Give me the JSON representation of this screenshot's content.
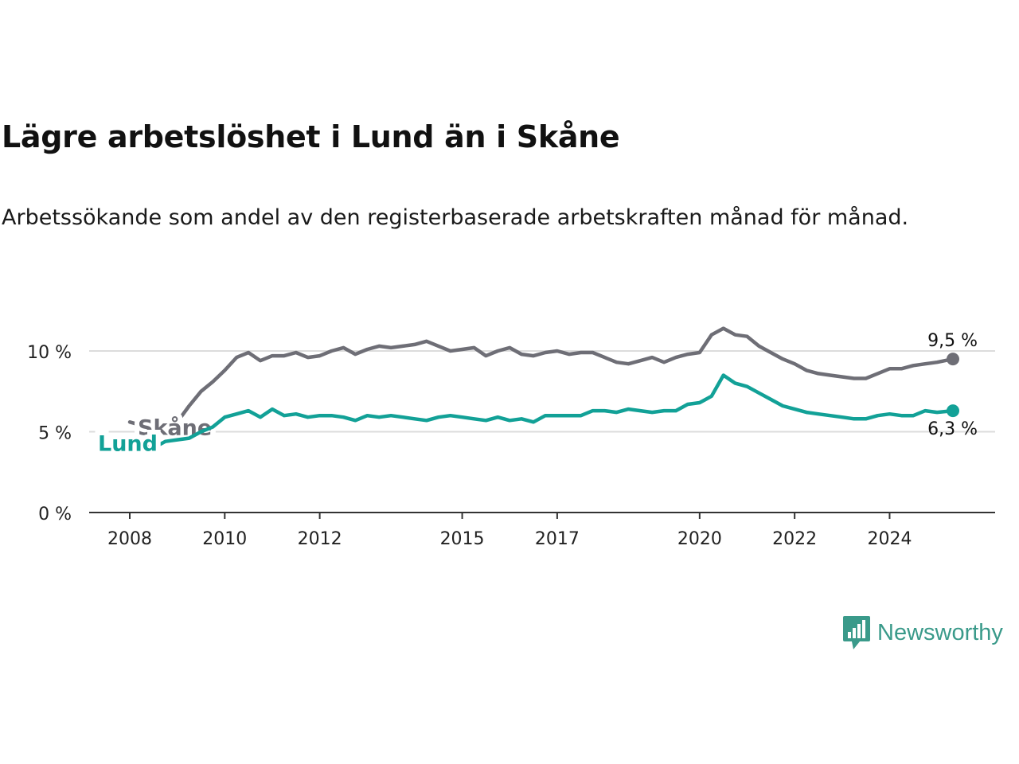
{
  "title": "Lägre arbetslöshet i Lund än i Skåne",
  "subtitle": "Arbetssökande som andel av den registerbaserade arbetskraften månad för månad.",
  "brand": {
    "name": "Newsworthy",
    "icon": "bar-chart-speech-bubble-icon",
    "color": "#3a9a8a"
  },
  "chart_data": {
    "type": "line",
    "x_ticks": [
      "2008",
      "2010",
      "2012",
      "2015",
      "2017",
      "2020",
      "2022",
      "2024"
    ],
    "y_ticks": [
      "0 %",
      "5 %",
      "10 %"
    ],
    "ylim": [
      0,
      12
    ],
    "xlim": [
      "2007-11",
      "2025-10"
    ],
    "grid": true,
    "series": [
      {
        "name": "Skåne",
        "color": "#6e6e76",
        "end_label": "9,5 %",
        "points": [
          [
            "2008-01",
            5.6
          ],
          [
            "2008-04",
            5.4
          ],
          [
            "2008-07",
            5.0
          ],
          [
            "2008-10",
            5.3
          ],
          [
            "2009-01",
            5.6
          ],
          [
            "2009-04",
            6.6
          ],
          [
            "2009-07",
            7.5
          ],
          [
            "2009-10",
            8.1
          ],
          [
            "2010-01",
            8.8
          ],
          [
            "2010-04",
            9.6
          ],
          [
            "2010-07",
            9.9
          ],
          [
            "2010-10",
            9.4
          ],
          [
            "2011-01",
            9.7
          ],
          [
            "2011-04",
            9.7
          ],
          [
            "2011-07",
            9.9
          ],
          [
            "2011-10",
            9.6
          ],
          [
            "2012-01",
            9.7
          ],
          [
            "2012-04",
            10.0
          ],
          [
            "2012-07",
            10.2
          ],
          [
            "2012-10",
            9.8
          ],
          [
            "2013-01",
            10.1
          ],
          [
            "2013-04",
            10.3
          ],
          [
            "2013-07",
            10.2
          ],
          [
            "2013-10",
            10.3
          ],
          [
            "2014-01",
            10.4
          ],
          [
            "2014-04",
            10.6
          ],
          [
            "2014-07",
            10.3
          ],
          [
            "2014-10",
            10.0
          ],
          [
            "2015-01",
            10.1
          ],
          [
            "2015-04",
            10.2
          ],
          [
            "2015-07",
            9.7
          ],
          [
            "2015-10",
            10.0
          ],
          [
            "2016-01",
            10.2
          ],
          [
            "2016-04",
            9.8
          ],
          [
            "2016-07",
            9.7
          ],
          [
            "2016-10",
            9.9
          ],
          [
            "2017-01",
            10.0
          ],
          [
            "2017-04",
            9.8
          ],
          [
            "2017-07",
            9.9
          ],
          [
            "2017-10",
            9.9
          ],
          [
            "2018-01",
            9.6
          ],
          [
            "2018-04",
            9.3
          ],
          [
            "2018-07",
            9.2
          ],
          [
            "2018-10",
            9.4
          ],
          [
            "2019-01",
            9.6
          ],
          [
            "2019-04",
            9.3
          ],
          [
            "2019-07",
            9.6
          ],
          [
            "2019-10",
            9.8
          ],
          [
            "2020-01",
            9.9
          ],
          [
            "2020-04",
            11.0
          ],
          [
            "2020-07",
            11.4
          ],
          [
            "2020-10",
            11.0
          ],
          [
            "2021-01",
            10.9
          ],
          [
            "2021-04",
            10.3
          ],
          [
            "2021-07",
            9.9
          ],
          [
            "2021-10",
            9.5
          ],
          [
            "2022-01",
            9.2
          ],
          [
            "2022-04",
            8.8
          ],
          [
            "2022-07",
            8.6
          ],
          [
            "2022-10",
            8.5
          ],
          [
            "2023-01",
            8.4
          ],
          [
            "2023-04",
            8.3
          ],
          [
            "2023-07",
            8.3
          ],
          [
            "2023-10",
            8.6
          ],
          [
            "2024-01",
            8.9
          ],
          [
            "2024-04",
            8.9
          ],
          [
            "2024-07",
            9.1
          ],
          [
            "2024-10",
            9.2
          ],
          [
            "2025-01",
            9.3
          ],
          [
            "2025-05",
            9.5
          ]
        ]
      },
      {
        "name": "Lund",
        "color": "#12a197",
        "end_label": "6,3 %",
        "points": [
          [
            "2008-01",
            4.2
          ],
          [
            "2008-04",
            4.1
          ],
          [
            "2008-07",
            4.0
          ],
          [
            "2008-10",
            4.4
          ],
          [
            "2009-01",
            4.5
          ],
          [
            "2009-04",
            4.6
          ],
          [
            "2009-07",
            5.0
          ],
          [
            "2009-10",
            5.3
          ],
          [
            "2010-01",
            5.9
          ],
          [
            "2010-04",
            6.1
          ],
          [
            "2010-07",
            6.3
          ],
          [
            "2010-10",
            5.9
          ],
          [
            "2011-01",
            6.4
          ],
          [
            "2011-04",
            6.0
          ],
          [
            "2011-07",
            6.1
          ],
          [
            "2011-10",
            5.9
          ],
          [
            "2012-01",
            6.0
          ],
          [
            "2012-04",
            6.0
          ],
          [
            "2012-07",
            5.9
          ],
          [
            "2012-10",
            5.7
          ],
          [
            "2013-01",
            6.0
          ],
          [
            "2013-04",
            5.9
          ],
          [
            "2013-07",
            6.0
          ],
          [
            "2013-10",
            5.9
          ],
          [
            "2014-01",
            5.8
          ],
          [
            "2014-04",
            5.7
          ],
          [
            "2014-07",
            5.9
          ],
          [
            "2014-10",
            6.0
          ],
          [
            "2015-01",
            5.9
          ],
          [
            "2015-04",
            5.8
          ],
          [
            "2015-07",
            5.7
          ],
          [
            "2015-10",
            5.9
          ],
          [
            "2016-01",
            5.7
          ],
          [
            "2016-04",
            5.8
          ],
          [
            "2016-07",
            5.6
          ],
          [
            "2016-10",
            6.0
          ],
          [
            "2017-01",
            6.0
          ],
          [
            "2017-04",
            6.0
          ],
          [
            "2017-07",
            6.0
          ],
          [
            "2017-10",
            6.3
          ],
          [
            "2018-01",
            6.3
          ],
          [
            "2018-04",
            6.2
          ],
          [
            "2018-07",
            6.4
          ],
          [
            "2018-10",
            6.3
          ],
          [
            "2019-01",
            6.2
          ],
          [
            "2019-04",
            6.3
          ],
          [
            "2019-07",
            6.3
          ],
          [
            "2019-10",
            6.7
          ],
          [
            "2020-01",
            6.8
          ],
          [
            "2020-04",
            7.2
          ],
          [
            "2020-07",
            8.5
          ],
          [
            "2020-10",
            8.0
          ],
          [
            "2021-01",
            7.8
          ],
          [
            "2021-04",
            7.4
          ],
          [
            "2021-07",
            7.0
          ],
          [
            "2021-10",
            6.6
          ],
          [
            "2022-01",
            6.4
          ],
          [
            "2022-04",
            6.2
          ],
          [
            "2022-07",
            6.1
          ],
          [
            "2022-10",
            6.0
          ],
          [
            "2023-01",
            5.9
          ],
          [
            "2023-04",
            5.8
          ],
          [
            "2023-07",
            5.8
          ],
          [
            "2023-10",
            6.0
          ],
          [
            "2024-01",
            6.1
          ],
          [
            "2024-04",
            6.0
          ],
          [
            "2024-07",
            6.0
          ],
          [
            "2024-10",
            6.3
          ],
          [
            "2025-01",
            6.2
          ],
          [
            "2025-05",
            6.3
          ]
        ]
      }
    ]
  }
}
